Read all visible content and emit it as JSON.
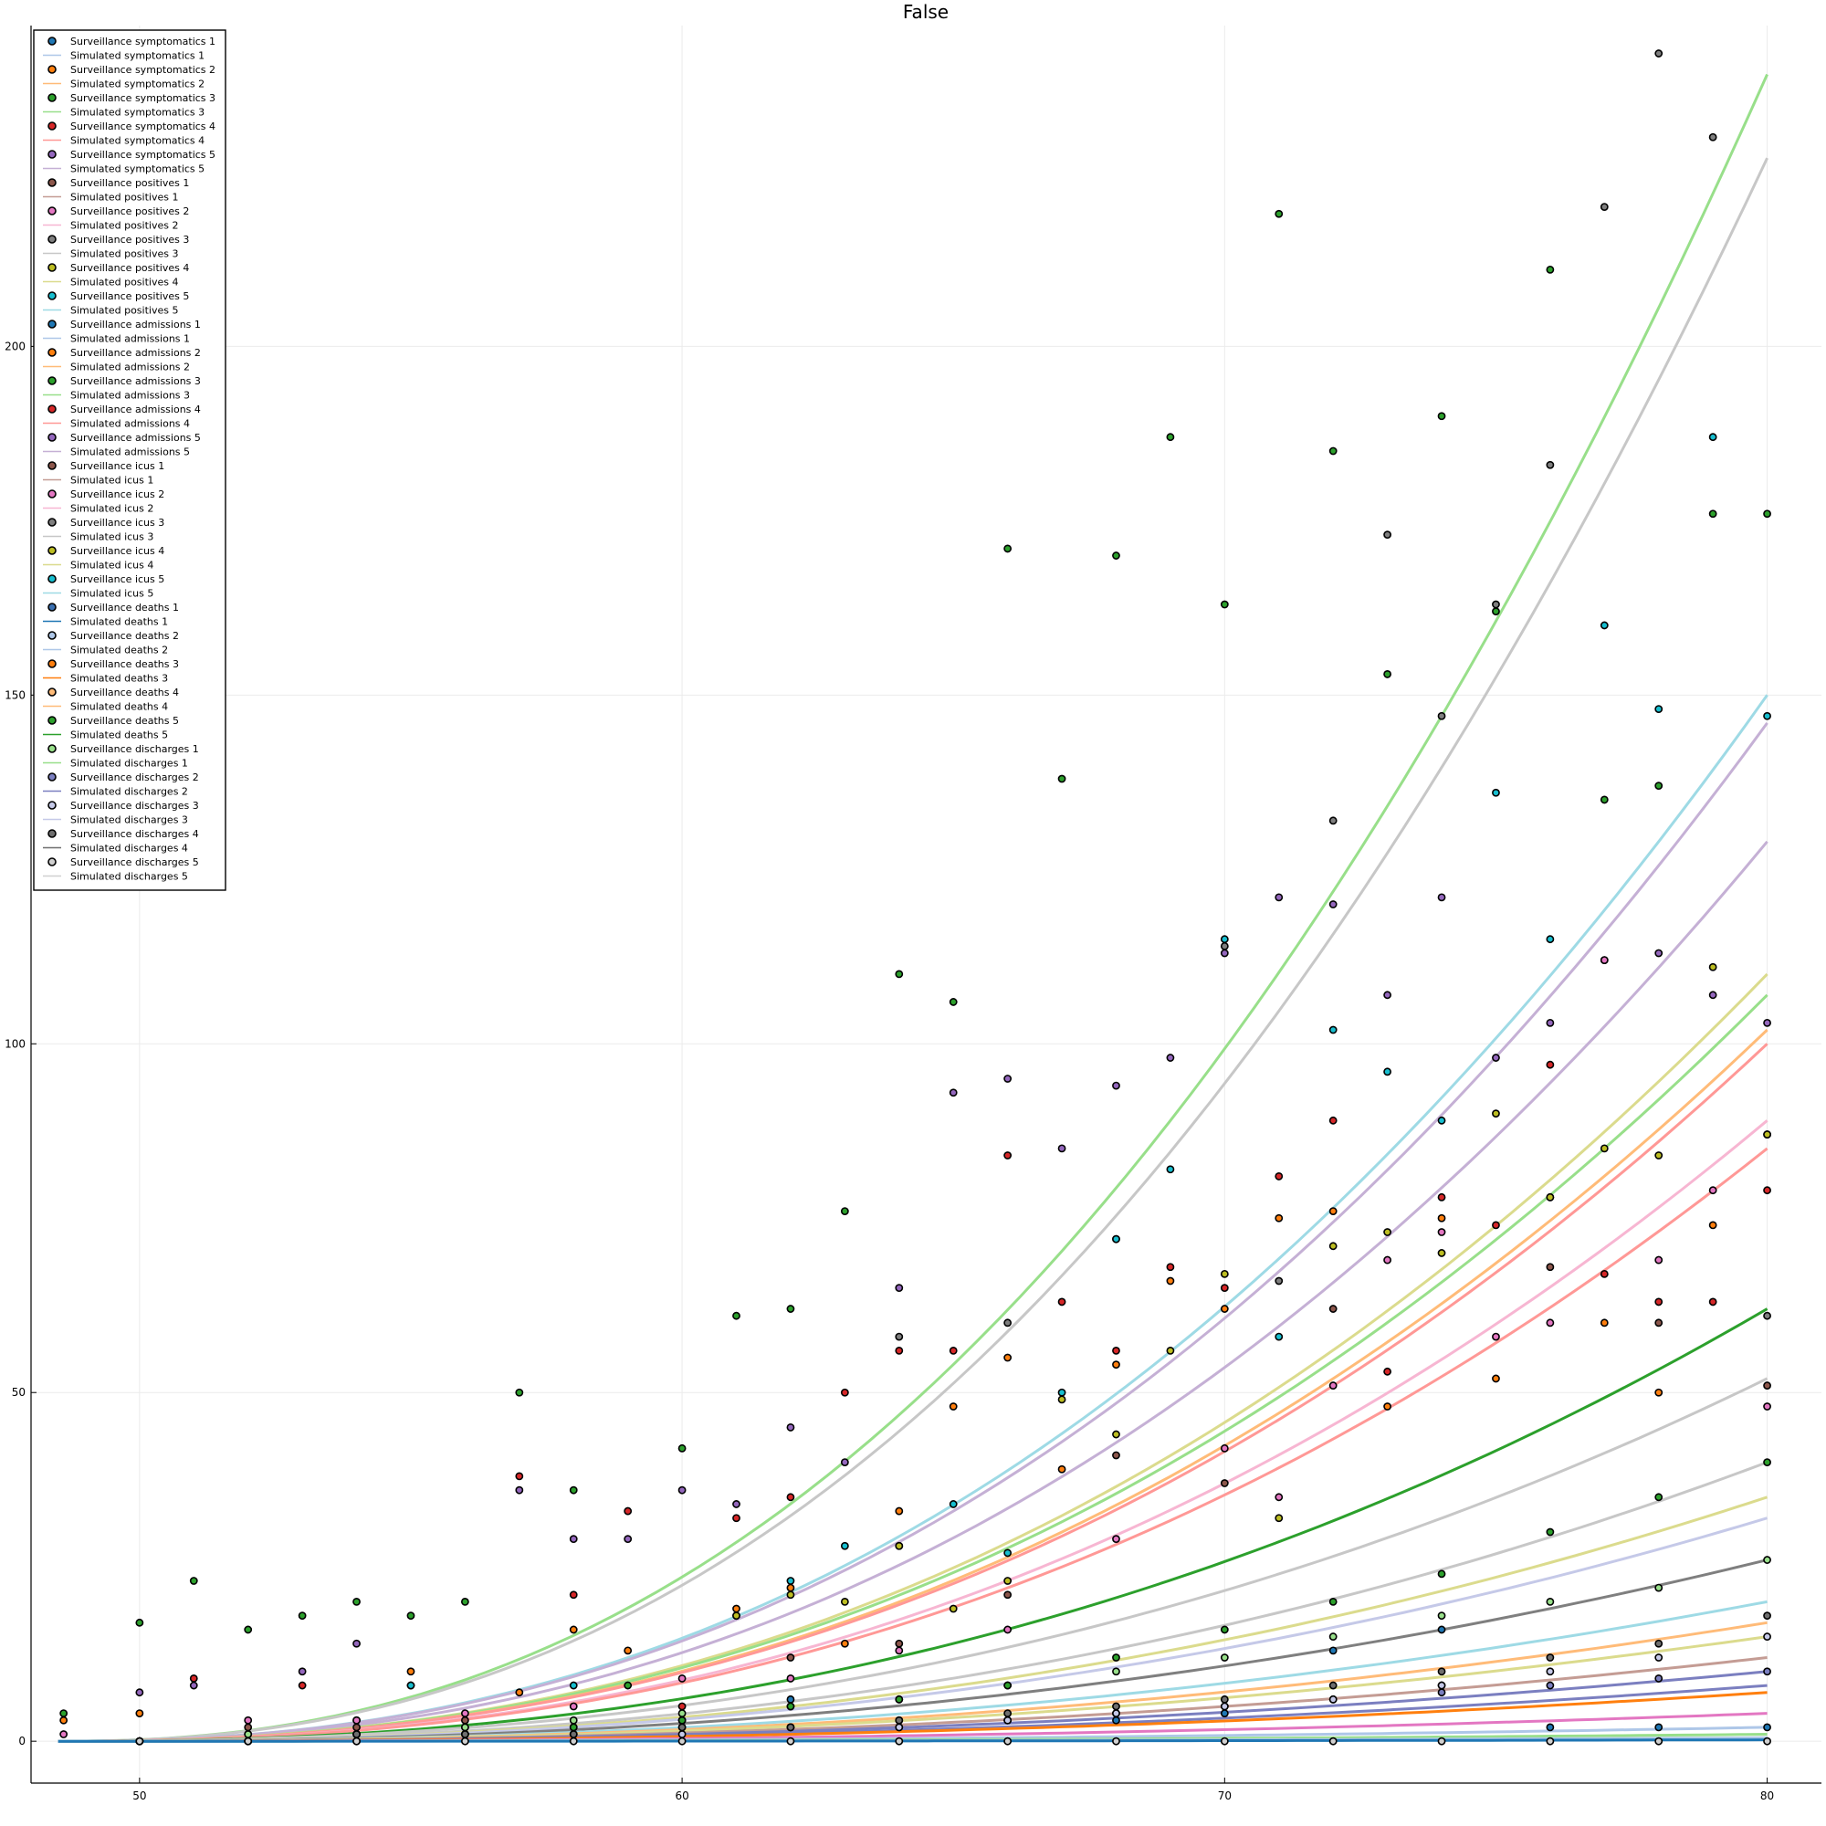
{
  "chart_data": {
    "type": "scatter",
    "title": "False",
    "xlabel": "",
    "ylabel": "",
    "xlim": [
      48,
      81
    ],
    "ylim": [
      -6,
      246
    ],
    "x_ticks": [
      50,
      60,
      70,
      80
    ],
    "x_tick_labels": [
      "50",
      "60",
      "70",
      "80"
    ],
    "y_ticks": [
      0,
      50,
      100,
      150,
      200
    ],
    "y_tick_labels": [
      "0",
      "50",
      "100",
      "150",
      "200"
    ],
    "grid": true,
    "legend_position": "top-left",
    "x_start": 48.5,
    "x_end": 80,
    "legend": [
      {
        "label": "Surveillance symptomatics 1",
        "kind": "marker",
        "color": "#1f77b4"
      },
      {
        "label": "Simulated symptomatics 1",
        "kind": "line",
        "color": "#aec7e8"
      },
      {
        "label": "Surveillance symptomatics 2",
        "kind": "marker",
        "color": "#ff7f0e"
      },
      {
        "label": "Simulated symptomatics 2",
        "kind": "line",
        "color": "#ffbb78"
      },
      {
        "label": "Surveillance symptomatics 3",
        "kind": "marker",
        "color": "#2ca02c"
      },
      {
        "label": "Simulated symptomatics 3",
        "kind": "line",
        "color": "#98df8a"
      },
      {
        "label": "Surveillance symptomatics 4",
        "kind": "marker",
        "color": "#d62728"
      },
      {
        "label": "Simulated symptomatics 4",
        "kind": "line",
        "color": "#ff9896"
      },
      {
        "label": "Surveillance symptomatics 5",
        "kind": "marker",
        "color": "#9467bd"
      },
      {
        "label": "Simulated symptomatics 5",
        "kind": "line",
        "color": "#c5b0d5"
      },
      {
        "label": "Surveillance positives 1",
        "kind": "marker",
        "color": "#8c564b"
      },
      {
        "label": "Simulated positives 1",
        "kind": "line",
        "color": "#c49c94"
      },
      {
        "label": "Surveillance positives 2",
        "kind": "marker",
        "color": "#e377c2"
      },
      {
        "label": "Simulated positives 2",
        "kind": "line",
        "color": "#f7b6d2"
      },
      {
        "label": "Surveillance positives 3",
        "kind": "marker",
        "color": "#7f7f7f"
      },
      {
        "label": "Simulated positives 3",
        "kind": "line",
        "color": "#c7c7c7"
      },
      {
        "label": "Surveillance positives 4",
        "kind": "marker",
        "color": "#bcbd22"
      },
      {
        "label": "Simulated positives 4",
        "kind": "line",
        "color": "#dbdb8d"
      },
      {
        "label": "Surveillance positives 5",
        "kind": "marker",
        "color": "#17becf"
      },
      {
        "label": "Simulated positives 5",
        "kind": "line",
        "color": "#9edae5"
      },
      {
        "label": "Surveillance admissions 1",
        "kind": "marker",
        "color": "#1f77b4"
      },
      {
        "label": "Simulated admissions 1",
        "kind": "line",
        "color": "#aec7e8"
      },
      {
        "label": "Surveillance admissions 2",
        "kind": "marker",
        "color": "#ff7f0e"
      },
      {
        "label": "Simulated admissions 2",
        "kind": "line",
        "color": "#ffbb78"
      },
      {
        "label": "Surveillance admissions 3",
        "kind": "marker",
        "color": "#2ca02c"
      },
      {
        "label": "Simulated admissions 3",
        "kind": "line",
        "color": "#98df8a"
      },
      {
        "label": "Surveillance admissions 4",
        "kind": "marker",
        "color": "#d62728"
      },
      {
        "label": "Simulated admissions 4",
        "kind": "line",
        "color": "#ff9896"
      },
      {
        "label": "Surveillance admissions 5",
        "kind": "marker",
        "color": "#9467bd"
      },
      {
        "label": "Simulated admissions 5",
        "kind": "line",
        "color": "#c5b0d5"
      },
      {
        "label": "Surveillance icus 1",
        "kind": "marker",
        "color": "#8c564b"
      },
      {
        "label": "Simulated icus 1",
        "kind": "line",
        "color": "#c49c94"
      },
      {
        "label": "Surveillance icus 2",
        "kind": "marker",
        "color": "#e377c2"
      },
      {
        "label": "Simulated icus 2",
        "kind": "line",
        "color": "#f7b6d2"
      },
      {
        "label": "Surveillance icus 3",
        "kind": "marker",
        "color": "#7f7f7f"
      },
      {
        "label": "Simulated icus 3",
        "kind": "line",
        "color": "#c7c7c7"
      },
      {
        "label": "Surveillance icus 4",
        "kind": "marker",
        "color": "#bcbd22"
      },
      {
        "label": "Simulated icus 4",
        "kind": "line",
        "color": "#dbdb8d"
      },
      {
        "label": "Surveillance icus 5",
        "kind": "marker",
        "color": "#17becf"
      },
      {
        "label": "Simulated icus 5",
        "kind": "line",
        "color": "#9edae5"
      },
      {
        "label": "Surveillance deaths 1",
        "kind": "marker",
        "color": "#3a6fb0"
      },
      {
        "label": "Simulated deaths 1",
        "kind": "line",
        "color": "#1f77b4"
      },
      {
        "label": "Surveillance deaths 2",
        "kind": "marker",
        "color": "#aec7e8"
      },
      {
        "label": "Simulated deaths 2",
        "kind": "line",
        "color": "#aec7e8"
      },
      {
        "label": "Surveillance deaths 3",
        "kind": "marker",
        "color": "#ff7f0e"
      },
      {
        "label": "Simulated deaths 3",
        "kind": "line",
        "color": "#ff7f0e"
      },
      {
        "label": "Surveillance deaths 4",
        "kind": "marker",
        "color": "#ffbb78"
      },
      {
        "label": "Simulated deaths 4",
        "kind": "line",
        "color": "#ffbb78"
      },
      {
        "label": "Surveillance deaths 5",
        "kind": "marker",
        "color": "#2ca02c"
      },
      {
        "label": "Simulated deaths 5",
        "kind": "line",
        "color": "#2ca02c"
      },
      {
        "label": "Surveillance discharges 1",
        "kind": "marker",
        "color": "#98df8a"
      },
      {
        "label": "Simulated discharges 1",
        "kind": "line",
        "color": "#98df8a"
      },
      {
        "label": "Surveillance discharges 2",
        "kind": "marker",
        "color": "#7b7fc0"
      },
      {
        "label": "Simulated discharges 2",
        "kind": "line",
        "color": "#7b7fc0"
      },
      {
        "label": "Surveillance discharges 3",
        "kind": "marker",
        "color": "#c5c9e8"
      },
      {
        "label": "Simulated discharges 3",
        "kind": "line",
        "color": "#c5c9e8"
      },
      {
        "label": "Surveillance discharges 4",
        "kind": "marker",
        "color": "#6f6f6f"
      },
      {
        "label": "Simulated discharges 4",
        "kind": "line",
        "color": "#6f6f6f"
      },
      {
        "label": "Surveillance discharges 5",
        "kind": "marker",
        "color": "#d0d0d0"
      },
      {
        "label": "Simulated discharges 5",
        "kind": "line",
        "color": "#d0d0d0"
      }
    ],
    "simulated_series": [
      {
        "color": "#98df8a",
        "end": 239
      },
      {
        "color": "#c7c7c7",
        "end": 227
      },
      {
        "color": "#9edae5",
        "end": 150
      },
      {
        "color": "#c5b0d5",
        "end": 146
      },
      {
        "color": "#c5b0d5",
        "end": 129
      },
      {
        "color": "#dbdb8d",
        "end": 110
      },
      {
        "color": "#98df8a",
        "end": 107
      },
      {
        "color": "#ffbb78",
        "end": 102
      },
      {
        "color": "#ff9896",
        "end": 100
      },
      {
        "color": "#f7b6d2",
        "end": 89
      },
      {
        "color": "#ff9896",
        "end": 85
      },
      {
        "color": "#2ca02c",
        "end": 62
      },
      {
        "color": "#c7c7c7",
        "end": 52
      },
      {
        "color": "#c7c7c7",
        "end": 40
      },
      {
        "color": "#dbdb8d",
        "end": 35
      },
      {
        "color": "#c5c9e8",
        "end": 32
      },
      {
        "color": "#7f7f7f",
        "end": 26
      },
      {
        "color": "#9edae5",
        "end": 20
      },
      {
        "color": "#ffbb78",
        "end": 17
      },
      {
        "color": "#dbdb8d",
        "end": 15
      },
      {
        "color": "#c49c94",
        "end": 12
      },
      {
        "color": "#7b7fc0",
        "end": 10
      },
      {
        "color": "#7b7fc0",
        "end": 8
      },
      {
        "color": "#ff7f0e",
        "end": 7
      },
      {
        "color": "#e377c2",
        "end": 4
      },
      {
        "color": "#aec7e8",
        "end": 2
      },
      {
        "color": "#98df8a",
        "end": 1
      },
      {
        "color": "#aec7e8",
        "end": 0.5
      },
      {
        "color": "#1f77b4",
        "end": 0.2
      }
    ],
    "surveillance_points": [
      {
        "color": "#2ca02c",
        "x": [
          48.6,
          50,
          51,
          52,
          53,
          54,
          55,
          56,
          57,
          58,
          59,
          60,
          61,
          62,
          63,
          64,
          65,
          66,
          67,
          68,
          69,
          70,
          71,
          72,
          73,
          74,
          75,
          76,
          77,
          78,
          79,
          80
        ],
        "y": [
          4,
          17,
          23,
          16,
          18,
          20,
          18,
          20,
          50,
          36,
          8,
          42,
          61,
          62,
          76,
          110,
          106,
          171,
          138,
          170,
          187,
          163,
          219,
          185,
          153,
          190,
          162,
          211,
          135,
          137,
          176,
          176
        ]
      },
      {
        "color": "#9467bd",
        "x": [
          50,
          51,
          53,
          54,
          55,
          57,
          58,
          59,
          60,
          61,
          62,
          63,
          64,
          65,
          66,
          67,
          68,
          69,
          70,
          71,
          72,
          73,
          74,
          75,
          76,
          77,
          78,
          79,
          80
        ],
        "y": [
          7,
          8,
          10,
          14,
          8,
          36,
          29,
          29,
          36,
          34,
          45,
          40,
          65,
          93,
          95,
          85,
          94,
          98,
          113,
          121,
          120,
          107,
          121,
          98,
          103,
          112,
          113,
          107,
          103
        ]
      },
      {
        "color": "#7f7f7f",
        "x": [
          64,
          66,
          68,
          70,
          71,
          72,
          73,
          74,
          75,
          76,
          77,
          78,
          79,
          80
        ],
        "y": [
          58,
          60,
          72,
          114,
          66,
          132,
          173,
          147,
          163,
          183,
          220,
          242,
          230,
          61
        ]
      },
      {
        "color": "#17becf",
        "x": [
          55,
          58,
          61,
          62,
          63,
          64,
          65,
          66,
          67,
          68,
          69,
          70,
          71,
          72,
          73,
          74,
          75,
          76,
          77,
          78,
          79,
          80
        ],
        "y": [
          8,
          8,
          18,
          23,
          28,
          28,
          34,
          27,
          50,
          72,
          82,
          115,
          58,
          102,
          96,
          89,
          136,
          115,
          160,
          148,
          187,
          147
        ]
      },
      {
        "color": "#d62728",
        "x": [
          51,
          53,
          54,
          57,
          58,
          59,
          60,
          61,
          62,
          63,
          64,
          65,
          66,
          67,
          68,
          69,
          70,
          71,
          72,
          73,
          74,
          75,
          76,
          77,
          78,
          79,
          80
        ],
        "y": [
          9,
          8,
          3,
          38,
          21,
          33,
          5,
          32,
          35,
          50,
          56,
          56,
          84,
          63,
          56,
          68,
          65,
          81,
          89,
          53,
          78,
          74,
          97,
          67,
          63,
          63,
          79
        ]
      },
      {
        "color": "#ff7f0e",
        "x": [
          48.6,
          50,
          55,
          57,
          58,
          59,
          61,
          62,
          63,
          64,
          65,
          66,
          67,
          68,
          69,
          70,
          71,
          72,
          73,
          74,
          75,
          76,
          77,
          78,
          79,
          80
        ],
        "y": [
          3,
          4,
          10,
          7,
          16,
          13,
          19,
          22,
          14,
          33,
          48,
          55,
          39,
          54,
          66,
          62,
          75,
          76,
          48,
          75,
          52,
          78,
          60,
          50,
          74,
          87
        ]
      },
      {
        "color": "#bcbd22",
        "x": [
          61,
          62,
          63,
          64,
          65,
          66,
          67,
          68,
          69,
          70,
          71,
          72,
          73,
          74,
          75,
          76,
          77,
          78,
          79,
          80
        ],
        "y": [
          18,
          21,
          20,
          28,
          19,
          23,
          49,
          44,
          56,
          67,
          32,
          71,
          73,
          70,
          90,
          78,
          85,
          84,
          111,
          87
        ]
      },
      {
        "color": "#e377c2",
        "x": [
          48.6,
          52,
          54,
          56,
          58,
          60,
          62,
          64,
          66,
          68,
          70,
          71,
          72,
          73,
          74,
          75,
          76,
          77,
          78,
          79,
          80
        ],
        "y": [
          1,
          3,
          3,
          4,
          5,
          9,
          9,
          13,
          16,
          29,
          42,
          35,
          51,
          69,
          73,
          58,
          60,
          112,
          69,
          79,
          48
        ]
      },
      {
        "color": "#8c564b",
        "x": [
          50,
          52,
          54,
          56,
          58,
          60,
          62,
          64,
          66,
          68,
          70,
          72,
          74,
          76,
          78,
          80
        ],
        "y": [
          0,
          2,
          2,
          3,
          2,
          3,
          12,
          14,
          21,
          41,
          37,
          62,
          8,
          68,
          60,
          51
        ]
      },
      {
        "color": "#1f77b4",
        "x": [
          52,
          54,
          56,
          58,
          60,
          62,
          64,
          66,
          68,
          70,
          72,
          74,
          76,
          78,
          80
        ],
        "y": [
          1,
          1,
          2,
          2,
          3,
          6,
          2,
          3,
          3,
          4,
          13,
          16,
          2,
          2,
          2
        ]
      },
      {
        "color": "#98df8a",
        "x": [
          50,
          52,
          54,
          56,
          58,
          60,
          62,
          64,
          66,
          68,
          70,
          72,
          74,
          76,
          78,
          80
        ],
        "y": [
          0,
          1,
          1,
          2,
          3,
          4,
          5,
          6,
          8,
          10,
          12,
          15,
          18,
          20,
          22,
          26
        ]
      },
      {
        "color": "#2ca02c",
        "x": [
          58,
          60,
          62,
          64,
          66,
          68,
          70,
          72,
          74,
          76,
          78,
          80
        ],
        "y": [
          2,
          3,
          5,
          6,
          8,
          12,
          16,
          20,
          24,
          30,
          35,
          40
        ]
      },
      {
        "color": "#7b7fc0",
        "x": [
          50,
          52,
          54,
          56,
          58,
          60,
          62,
          64,
          66,
          68,
          70,
          72,
          74,
          76,
          78,
          80
        ],
        "y": [
          0,
          0,
          1,
          1,
          1,
          2,
          2,
          3,
          3,
          4,
          5,
          6,
          7,
          8,
          9,
          10
        ]
      },
      {
        "color": "#c5c9e8",
        "x": [
          50,
          52,
          54,
          56,
          58,
          60,
          62,
          64,
          66,
          68,
          70,
          72,
          74,
          76,
          78,
          80
        ],
        "y": [
          0,
          0,
          0,
          1,
          1,
          1,
          2,
          2,
          3,
          4,
          5,
          6,
          8,
          10,
          12,
          15
        ]
      },
      {
        "color": "#6f6f6f",
        "x": [
          50,
          52,
          54,
          56,
          58,
          60,
          62,
          64,
          66,
          68,
          70,
          72,
          74,
          76,
          78,
          80
        ],
        "y": [
          0,
          0,
          1,
          1,
          1,
          2,
          2,
          3,
          4,
          5,
          6,
          8,
          10,
          12,
          14,
          18
        ]
      },
      {
        "color": "#d0d0d0",
        "x": [
          50,
          52,
          54,
          56,
          58,
          60,
          62,
          64,
          66,
          68,
          70,
          72,
          74,
          76,
          78,
          80
        ],
        "y": [
          0,
          0,
          0,
          0,
          0,
          0,
          0,
          0,
          0,
          0,
          0,
          0,
          0,
          0,
          0,
          0
        ]
      }
    ]
  }
}
